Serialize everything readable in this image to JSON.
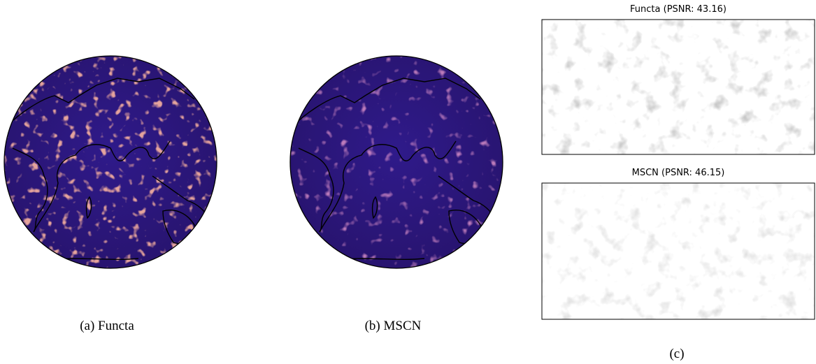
{
  "panels": [
    {
      "caption": "(a) Functa"
    },
    {
      "caption": "(b) MSCN"
    }
  ],
  "error_maps": {
    "caption": "(c)",
    "maps": [
      {
        "title": "Functa (PSNR: 43.16)"
      },
      {
        "title": "MSCN (PSNR: 46.15)"
      }
    ]
  }
}
